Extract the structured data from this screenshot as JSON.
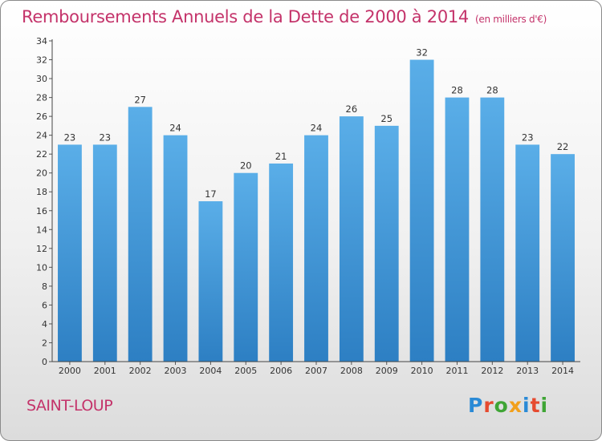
{
  "chart_data": {
    "type": "bar",
    "title": "Remboursements Annuels de la Dette de 2000 à 2014",
    "subtitle": "(en milliers d'€)",
    "categories": [
      "2000",
      "2001",
      "2002",
      "2003",
      "2004",
      "2005",
      "2006",
      "2007",
      "2008",
      "2009",
      "2010",
      "2011",
      "2012",
      "2013",
      "2014"
    ],
    "values": [
      23,
      23,
      27,
      24,
      17,
      20,
      21,
      24,
      26,
      25,
      32,
      28,
      28,
      23,
      22
    ],
    "ylim": [
      0,
      34
    ],
    "ytick_step": 2,
    "xlabel": "",
    "ylabel": "",
    "grid": false,
    "bar_color": "#4ba3e3"
  },
  "footer": {
    "commune": "SAINT-LOUP",
    "logo": [
      "P",
      "r",
      "o",
      "x",
      "i",
      "t",
      "i"
    ],
    "logo_colors": [
      "#2a8ad6",
      "#e64a2f",
      "#3fa535",
      "#f2a01b",
      "#2a8ad6",
      "#e64a2f",
      "#3fa535"
    ]
  }
}
